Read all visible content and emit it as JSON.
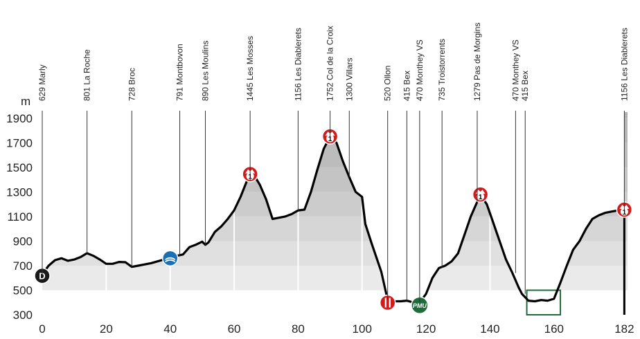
{
  "chart_data": {
    "type": "area",
    "title": "",
    "xlabel": "",
    "ylabel": "m",
    "xlim": [
      0,
      183
    ],
    "ylim": [
      300,
      1950
    ],
    "x_ticks": [
      0,
      20,
      40,
      60,
      80,
      100,
      120,
      140,
      160,
      182
    ],
    "y_ticks": [
      300,
      500,
      700,
      900,
      1100,
      1300,
      1500,
      1700,
      1900
    ],
    "profile": [
      [
        0,
        629
      ],
      [
        2,
        700
      ],
      [
        4,
        745
      ],
      [
        6,
        760
      ],
      [
        8,
        740
      ],
      [
        10,
        750
      ],
      [
        12,
        770
      ],
      [
        14,
        801
      ],
      [
        16,
        780
      ],
      [
        18,
        750
      ],
      [
        20,
        715
      ],
      [
        22,
        715
      ],
      [
        24,
        730
      ],
      [
        26,
        728
      ],
      [
        28,
        690
      ],
      [
        30,
        700
      ],
      [
        32,
        710
      ],
      [
        34,
        720
      ],
      [
        36,
        735
      ],
      [
        38,
        750
      ],
      [
        40,
        760
      ],
      [
        42,
        780
      ],
      [
        44,
        791
      ],
      [
        46,
        850
      ],
      [
        48,
        870
      ],
      [
        50,
        895
      ],
      [
        51,
        870
      ],
      [
        52,
        890
      ],
      [
        54,
        975
      ],
      [
        56,
        1020
      ],
      [
        58,
        1080
      ],
      [
        60,
        1150
      ],
      [
        62,
        1260
      ],
      [
        64,
        1390
      ],
      [
        66,
        1445
      ],
      [
        68,
        1360
      ],
      [
        70,
        1240
      ],
      [
        72,
        1080
      ],
      [
        74,
        1090
      ],
      [
        76,
        1100
      ],
      [
        78,
        1120
      ],
      [
        80,
        1150
      ],
      [
        82,
        1156
      ],
      [
        84,
        1300
      ],
      [
        86,
        1480
      ],
      [
        88,
        1650
      ],
      [
        90,
        1752
      ],
      [
        92,
        1700
      ],
      [
        94,
        1550
      ],
      [
        96,
        1420
      ],
      [
        98,
        1300
      ],
      [
        100,
        1260
      ],
      [
        101,
        1040
      ],
      [
        103,
        880
      ],
      [
        106,
        650
      ],
      [
        108,
        420
      ],
      [
        110,
        410
      ],
      [
        112,
        410
      ],
      [
        114,
        415
      ],
      [
        116,
        400
      ],
      [
        118,
        400
      ],
      [
        120,
        470
      ],
      [
        122,
        600
      ],
      [
        124,
        680
      ],
      [
        126,
        700
      ],
      [
        128,
        735
      ],
      [
        130,
        800
      ],
      [
        132,
        950
      ],
      [
        134,
        1100
      ],
      [
        136,
        1220
      ],
      [
        137,
        1279
      ],
      [
        139,
        1200
      ],
      [
        141,
        1050
      ],
      [
        143,
        900
      ],
      [
        145,
        750
      ],
      [
        147,
        640
      ],
      [
        149,
        520
      ],
      [
        150,
        470
      ],
      [
        152,
        415
      ],
      [
        154,
        410
      ],
      [
        156,
        420
      ],
      [
        158,
        415
      ],
      [
        160,
        430
      ],
      [
        162,
        560
      ],
      [
        164,
        700
      ],
      [
        166,
        830
      ],
      [
        168,
        900
      ],
      [
        170,
        1000
      ],
      [
        172,
        1080
      ],
      [
        174,
        1110
      ],
      [
        176,
        1130
      ],
      [
        178,
        1140
      ],
      [
        180,
        1150
      ],
      [
        182,
        1156
      ]
    ],
    "waypoints": [
      {
        "km": 0,
        "label": "629 Marly"
      },
      {
        "km": 14,
        "label": "801 La Roche"
      },
      {
        "km": 28,
        "label": "728 Broc"
      },
      {
        "km": 43,
        "label": "791 Montbovon"
      },
      {
        "km": 51,
        "label": "890 Les Moulins"
      },
      {
        "km": 65,
        "label": "1445  Les Mosses"
      },
      {
        "km": 80,
        "label": "1156  Les Diablerets"
      },
      {
        "km": 90,
        "label": "1752 Col de la Croix"
      },
      {
        "km": 96,
        "label": "1300 Villars"
      },
      {
        "km": 108,
        "label": "520 Ollon"
      },
      {
        "km": 114,
        "label": "415 Bex"
      },
      {
        "km": 118,
        "label": "470 Monthey VS"
      },
      {
        "km": 125,
        "label": "735 Troistorrents"
      },
      {
        "km": 136,
        "label": "1279 Pas de Morgins"
      },
      {
        "km": 148,
        "label": "470 Monthey VS"
      },
      {
        "km": 151,
        "label": "415 Bex"
      },
      {
        "km": 182,
        "label": "1156 Les Diablerets"
      }
    ],
    "markers": [
      {
        "type": "start",
        "km": 0,
        "alt": 629,
        "text": "D",
        "color": "#1a1a1a"
      },
      {
        "type": "feed-zone",
        "km": 40,
        "alt": 760,
        "text": "",
        "color": "#1a6fb5"
      },
      {
        "type": "climb",
        "km": 65,
        "alt": 1445,
        "text": "1",
        "color": "#d01c1c"
      },
      {
        "type": "climb",
        "km": 90,
        "alt": 1752,
        "text": "1",
        "color": "#d01c1c"
      },
      {
        "type": "feed",
        "km": 108,
        "alt": 410,
        "text": "",
        "color": "#d01c1c"
      },
      {
        "type": "sprint",
        "km": 118,
        "alt": 400,
        "text": "PMU",
        "color": "#1f6b3c"
      },
      {
        "type": "climb",
        "km": 137,
        "alt": 1279,
        "text": "1",
        "color": "#d01c1c"
      },
      {
        "type": "climb",
        "km": 182,
        "alt": 1156,
        "text": "1",
        "color": "#d01c1c"
      }
    ]
  }
}
